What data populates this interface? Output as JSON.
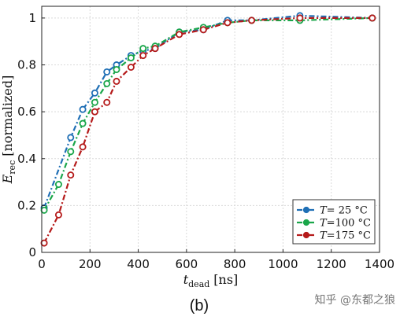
{
  "chart_data": {
    "type": "line",
    "title": "",
    "xlabel": "t_dead [ns]",
    "xlabel_main": "t",
    "xlabel_sub": "dead",
    "xlabel_unit": "[ns]",
    "ylabel": "E_rec [normalized]",
    "ylabel_main": "E",
    "ylabel_sub": "rec",
    "ylabel_unit": "[normalized]",
    "xlim": [
      0,
      1400
    ],
    "ylim": [
      0,
      1.05
    ],
    "xticks": [
      0,
      200,
      400,
      600,
      800,
      1000,
      1200,
      1400
    ],
    "xtick_labels": [
      "0",
      "200",
      "400",
      "600",
      "800",
      "1000",
      "1200",
      "1400"
    ],
    "yticks": [
      0,
      0.2,
      0.4,
      0.6,
      0.8,
      1
    ],
    "ytick_labels": [
      "0",
      "0.2",
      "0.4",
      "0.6",
      "0.8",
      "1"
    ],
    "grid": true,
    "legend_position": "bottom-right",
    "series": [
      {
        "name": "T= 25 °C",
        "label_var": "T",
        "label_rest": "= 25 °C",
        "color": "#1f6fb5",
        "x": [
          10,
          120,
          170,
          220,
          270,
          310,
          370,
          420,
          470,
          570,
          670,
          770,
          870,
          1070,
          1370
        ],
        "y": [
          0.19,
          0.49,
          0.61,
          0.68,
          0.77,
          0.8,
          0.84,
          0.86,
          0.87,
          0.94,
          0.95,
          0.99,
          0.99,
          1.01,
          1.0
        ]
      },
      {
        "name": "T=100 °C",
        "label_var": "T",
        "label_rest": "=100 °C",
        "color": "#1aa64a",
        "x": [
          10,
          70,
          120,
          170,
          220,
          270,
          310,
          370,
          420,
          470,
          570,
          670,
          770,
          870,
          1070,
          1370
        ],
        "y": [
          0.18,
          0.29,
          0.43,
          0.55,
          0.64,
          0.72,
          0.78,
          0.83,
          0.87,
          0.88,
          0.94,
          0.96,
          0.98,
          0.99,
          0.99,
          1.0
        ]
      },
      {
        "name": "T=175 °C",
        "label_var": "T",
        "label_rest": "=175 °C",
        "color": "#b51a1a",
        "x": [
          10,
          70,
          120,
          170,
          220,
          270,
          310,
          370,
          420,
          470,
          570,
          670,
          770,
          870,
          1070,
          1370
        ],
        "y": [
          0.04,
          0.16,
          0.33,
          0.45,
          0.6,
          0.64,
          0.73,
          0.79,
          0.84,
          0.87,
          0.93,
          0.95,
          0.98,
          0.99,
          1.0,
          1.0
        ]
      }
    ]
  },
  "caption": "(b)",
  "watermark": "知乎 @东都之狼"
}
